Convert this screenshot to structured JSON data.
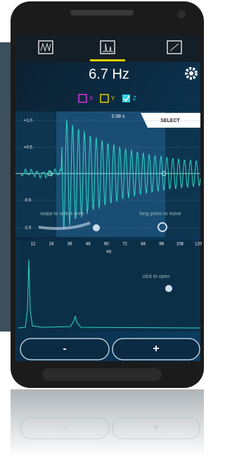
{
  "header": {
    "frequency": "6.7 Hz"
  },
  "axis_toggles": [
    "X",
    "Y",
    "Z"
  ],
  "time_plot": {
    "duration": "2.08 s",
    "action": "SELECT",
    "y_ticks": [
      "+1.0",
      "+0.5",
      "-0.5",
      "-1.0"
    ],
    "hints": [
      "swipe to select area",
      "long press to move"
    ]
  },
  "spectrum": {
    "x_ticks": [
      "12",
      "24",
      "36",
      "48",
      "60",
      "72",
      "84",
      "96",
      "108",
      "120"
    ],
    "unit": "Hz",
    "hint": "click to open"
  },
  "buttons": [
    "-",
    "+"
  ]
}
